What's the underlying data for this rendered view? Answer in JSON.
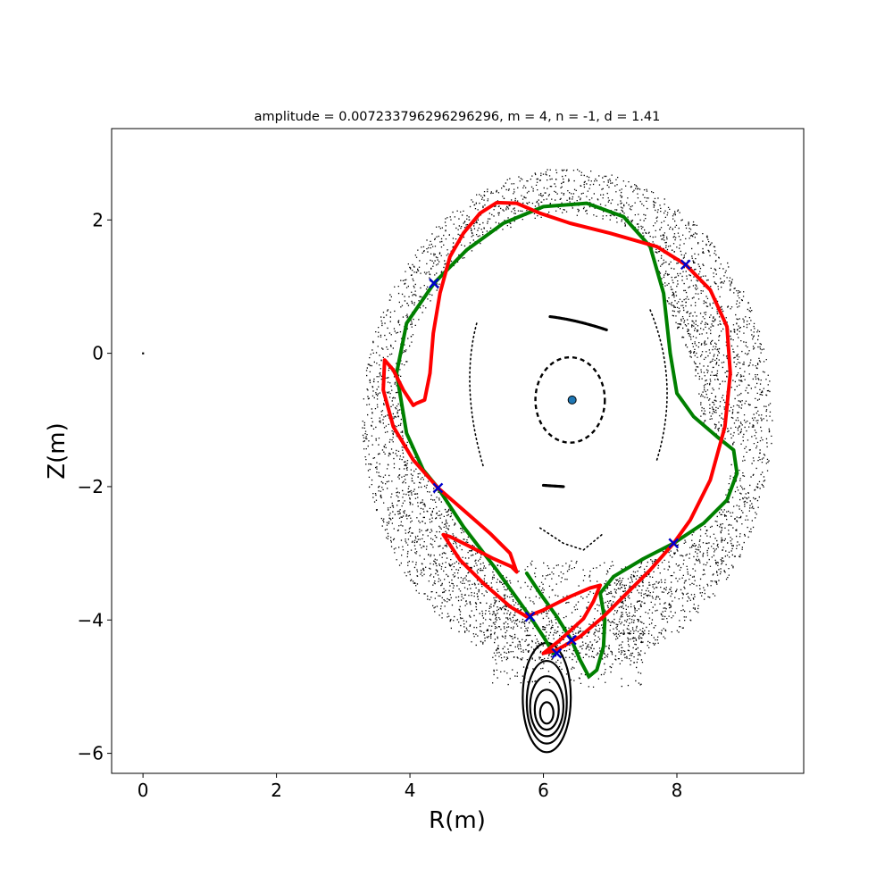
{
  "chart_data": {
    "type": "scatter",
    "title": "amplitude = 0.007233796296296296, m = 4, n = -1, d = 1.41",
    "xlabel": "R(m)",
    "ylabel": "Z(m)",
    "xlim": [
      -0.47,
      9.9
    ],
    "ylim": [
      -6.3,
      3.37
    ],
    "x_ticks": [
      0,
      2,
      4,
      6,
      8
    ],
    "y_ticks": [
      2,
      0,
      -2,
      -4,
      -6
    ],
    "x_tick_labels": [
      "0",
      "2",
      "4",
      "6",
      "8"
    ],
    "y_tick_labels": [
      "2",
      "0",
      "−2",
      "−4",
      "−6"
    ],
    "grid": false,
    "colors": {
      "scatter": "#000000",
      "unstable_manifold": "#ff0000",
      "stable_manifold": "#008000",
      "x_points": "#0000cc",
      "magnetic_axis": "#1f77b4"
    },
    "magnetic_axis": [
      6.43,
      -0.7
    ],
    "origin_point": [
      0,
      0
    ],
    "x_points": [
      [
        4.36,
        1.05
      ],
      [
        8.13,
        1.33
      ],
      [
        4.42,
        -2.02
      ],
      [
        7.95,
        -2.85
      ],
      [
        5.8,
        -3.95
      ],
      [
        6.42,
        -4.3
      ],
      [
        6.2,
        -4.5
      ]
    ],
    "inner_island": {
      "center": [
        6.4,
        -0.7
      ],
      "rx": 0.52,
      "ry": 0.64
    },
    "island_arcs": [
      {
        "points": [
          [
            6.1,
            0.55
          ],
          [
            6.5,
            0.5
          ],
          [
            6.95,
            0.35
          ]
        ],
        "style": "dense"
      },
      {
        "points": [
          [
            6.0,
            -1.98
          ],
          [
            6.15,
            -1.99
          ],
          [
            6.3,
            -2.0
          ]
        ],
        "style": "dense"
      },
      {
        "points": [
          [
            5.95,
            -2.62
          ],
          [
            6.3,
            -2.85
          ],
          [
            6.6,
            -2.95
          ],
          [
            6.9,
            -2.7
          ]
        ],
        "style": "sparse"
      },
      {
        "points": [
          [
            5.0,
            0.45
          ],
          [
            4.75,
            -0.5
          ],
          [
            5.1,
            -1.7
          ]
        ],
        "style": "sparse"
      },
      {
        "points": [
          [
            7.6,
            0.65
          ],
          [
            8.05,
            -0.45
          ],
          [
            7.7,
            -1.6
          ]
        ],
        "style": "sparse"
      }
    ],
    "lower_island": {
      "center": [
        6.05,
        -5.45
      ],
      "rings": [
        [
          0.1,
          0.16
        ],
        [
          0.18,
          0.3
        ],
        [
          0.25,
          0.45
        ],
        [
          0.3,
          0.62
        ],
        [
          0.36,
          0.82
        ]
      ]
    },
    "red_manifold": [
      [
        4.1,
        -0.75
      ],
      [
        4.22,
        -0.7
      ],
      [
        4.3,
        -0.3
      ],
      [
        4.35,
        0.3
      ],
      [
        4.45,
        0.9
      ],
      [
        4.6,
        1.45
      ],
      [
        4.8,
        1.8
      ],
      [
        5.05,
        2.1
      ],
      [
        5.3,
        2.26
      ],
      [
        5.6,
        2.25
      ],
      [
        5.95,
        2.1
      ],
      [
        6.4,
        1.95
      ],
      [
        7.0,
        1.8
      ],
      [
        7.7,
        1.6
      ],
      [
        8.13,
        1.33
      ],
      [
        8.5,
        0.95
      ],
      [
        8.75,
        0.4
      ],
      [
        8.8,
        -0.3
      ],
      [
        8.72,
        -1.1
      ],
      [
        8.5,
        -1.9
      ],
      [
        8.2,
        -2.5
      ],
      [
        7.95,
        -2.85
      ],
      [
        7.6,
        -3.25
      ],
      [
        7.2,
        -3.65
      ],
      [
        6.9,
        -3.95
      ],
      [
        6.55,
        -4.25
      ],
      [
        6.2,
        -4.45
      ],
      [
        6.0,
        -4.5
      ],
      [
        6.25,
        -4.3
      ],
      [
        6.6,
        -3.98
      ],
      [
        6.75,
        -3.72
      ],
      [
        6.85,
        -3.48
      ],
      [
        6.7,
        -3.52
      ],
      [
        6.4,
        -3.65
      ],
      [
        6.0,
        -3.85
      ],
      [
        5.75,
        -3.95
      ],
      [
        5.5,
        -3.8
      ],
      [
        5.1,
        -3.45
      ],
      [
        4.75,
        -3.1
      ],
      [
        4.5,
        -2.72
      ],
      [
        4.6,
        -2.75
      ],
      [
        4.9,
        -2.9
      ],
      [
        5.25,
        -3.08
      ],
      [
        5.52,
        -3.2
      ],
      [
        5.6,
        -3.28
      ],
      [
        5.5,
        -3.0
      ],
      [
        5.2,
        -2.7
      ],
      [
        4.8,
        -2.35
      ],
      [
        4.42,
        -2.02
      ],
      [
        4.05,
        -1.6
      ],
      [
        3.75,
        -1.1
      ],
      [
        3.6,
        -0.55
      ],
      [
        3.62,
        -0.1
      ],
      [
        3.75,
        -0.25
      ],
      [
        3.9,
        -0.55
      ],
      [
        4.05,
        -0.78
      ],
      [
        4.1,
        -0.75
      ]
    ],
    "green_manifold": [
      [
        5.75,
        -3.3
      ],
      [
        5.95,
        -3.6
      ],
      [
        6.2,
        -3.95
      ],
      [
        6.42,
        -4.3
      ],
      [
        6.55,
        -4.6
      ],
      [
        6.68,
        -4.85
      ],
      [
        6.8,
        -4.75
      ],
      [
        6.9,
        -4.4
      ],
      [
        6.92,
        -4.0
      ],
      [
        6.85,
        -3.6
      ],
      [
        7.05,
        -3.35
      ],
      [
        7.5,
        -3.08
      ],
      [
        7.95,
        -2.85
      ],
      [
        8.4,
        -2.55
      ],
      [
        8.75,
        -2.2
      ],
      [
        8.9,
        -1.8
      ],
      [
        8.85,
        -1.45
      ],
      [
        8.6,
        -1.25
      ],
      [
        8.25,
        -0.95
      ],
      [
        8.0,
        -0.6
      ],
      [
        7.9,
        0.0
      ],
      [
        7.8,
        0.9
      ],
      [
        7.6,
        1.6
      ],
      [
        7.2,
        2.05
      ],
      [
        6.65,
        2.25
      ],
      [
        6.0,
        2.2
      ],
      [
        5.4,
        1.95
      ],
      [
        4.85,
        1.55
      ],
      [
        4.36,
        1.05
      ],
      [
        3.95,
        0.45
      ],
      [
        3.8,
        -0.3
      ],
      [
        3.95,
        -1.2
      ],
      [
        4.2,
        -1.75
      ],
      [
        4.42,
        -2.02
      ],
      [
        4.8,
        -2.6
      ],
      [
        5.3,
        -3.25
      ],
      [
        5.8,
        -3.95
      ],
      [
        6.0,
        -4.25
      ],
      [
        6.15,
        -4.5
      ]
    ]
  }
}
